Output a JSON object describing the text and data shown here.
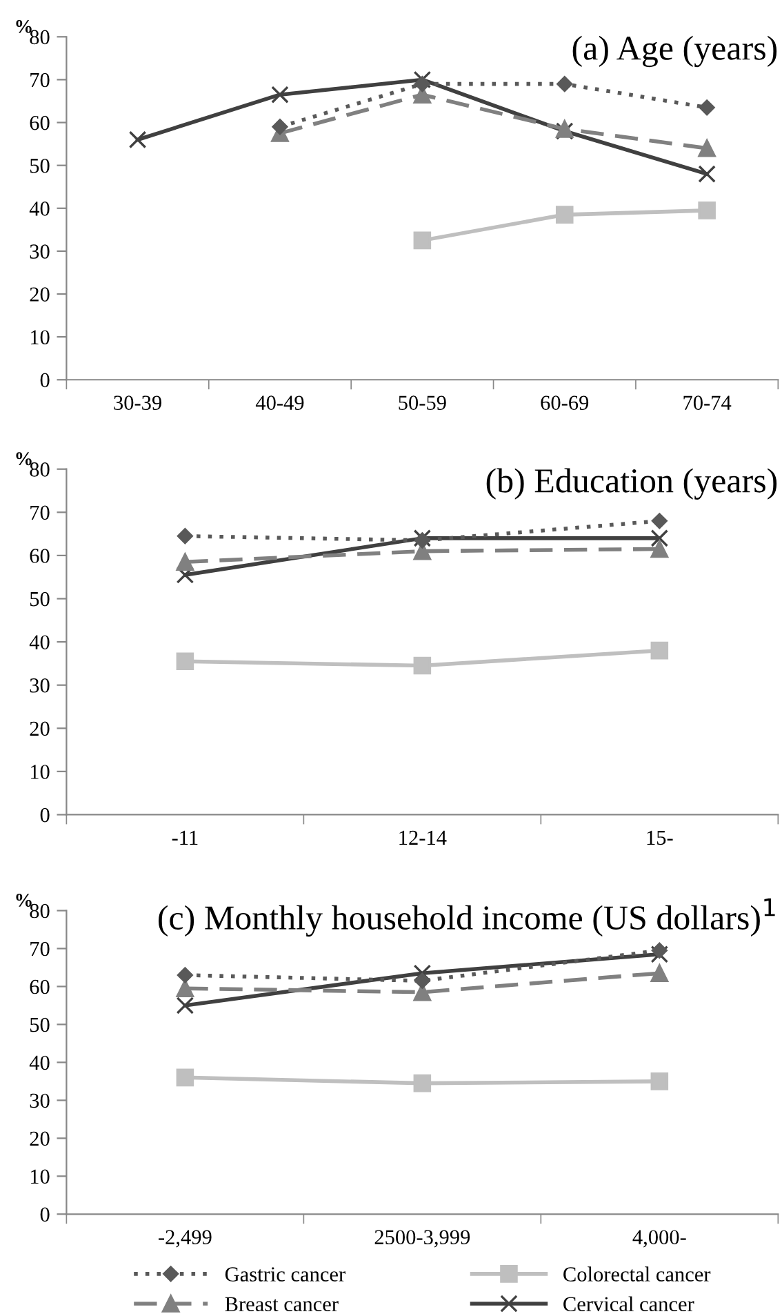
{
  "chart_data": [
    {
      "type": "line",
      "title": "(a) Age (years)",
      "ylabel": "%",
      "categories": [
        "30-39",
        "40-49",
        "50-59",
        "60-69",
        "70-74"
      ],
      "ylim": [
        0,
        80
      ],
      "yticks": [
        0,
        10,
        20,
        30,
        40,
        50,
        60,
        70,
        80
      ],
      "grid": false,
      "legend": false,
      "series": [
        {
          "color": "#595959",
          "marker": "diamond",
          "line_style": "dotted",
          "values": [
            null,
            59,
            69,
            69,
            63.5
          ]
        },
        {
          "color": "#bfbfbf",
          "marker": "square",
          "line_style": "solid",
          "values": [
            null,
            null,
            32.5,
            38.5,
            39.5
          ]
        },
        {
          "color": "#808080",
          "marker": "triangle",
          "line_style": "dashed",
          "values": [
            null,
            57.5,
            66.5,
            58.5,
            54
          ]
        },
        {
          "color": "#404040",
          "marker": "cross",
          "line_style": "solid",
          "values": [
            56,
            66.5,
            70,
            58,
            48
          ]
        }
      ]
    },
    {
      "type": "line",
      "title": "(b) Education (years)",
      "ylabel": "%",
      "categories": [
        "-11",
        "12-14",
        "15-"
      ],
      "ylim": [
        0,
        80
      ],
      "yticks": [
        0,
        10,
        20,
        30,
        40,
        50,
        60,
        70,
        80
      ],
      "grid": false,
      "legend": false,
      "series": [
        {
          "color": "#595959",
          "marker": "diamond",
          "line_style": "dotted",
          "values": [
            64.5,
            63.5,
            68
          ]
        },
        {
          "color": "#bfbfbf",
          "marker": "square",
          "line_style": "solid",
          "values": [
            35.5,
            34.5,
            38
          ]
        },
        {
          "color": "#808080",
          "marker": "triangle",
          "line_style": "dashed",
          "values": [
            58.5,
            61,
            61.5
          ]
        },
        {
          "color": "#404040",
          "marker": "cross",
          "line_style": "solid",
          "values": [
            55.5,
            64,
            64
          ]
        }
      ]
    },
    {
      "type": "line",
      "title": "(c) Monthly household income (US dollars)$^{1}$",
      "ylabel": "%",
      "categories": [
        "-2,499",
        "2500-3,999",
        "4,000-"
      ],
      "ylim": [
        0,
        80
      ],
      "yticks": [
        0,
        10,
        20,
        30,
        40,
        50,
        60,
        70,
        80
      ],
      "grid": false,
      "legend": "bottom",
      "series": [
        {
          "name": "Gastric cancer",
          "color": "#595959",
          "marker": "diamond",
          "line_style": "dotted",
          "values": [
            63,
            61.5,
            69.5
          ]
        },
        {
          "name": "Colorectal cancer",
          "color": "#bfbfbf",
          "marker": "square",
          "line_style": "solid",
          "values": [
            36,
            34.5,
            35
          ]
        },
        {
          "name": "Breast cancer",
          "color": "#808080",
          "marker": "triangle",
          "line_style": "dashed",
          "values": [
            59.5,
            58.5,
            63.5
          ]
        },
        {
          "name": "Cervical cancer",
          "color": "#404040",
          "marker": "cross",
          "line_style": "solid",
          "values": [
            55,
            63.5,
            68.5
          ]
        }
      ]
    }
  ]
}
